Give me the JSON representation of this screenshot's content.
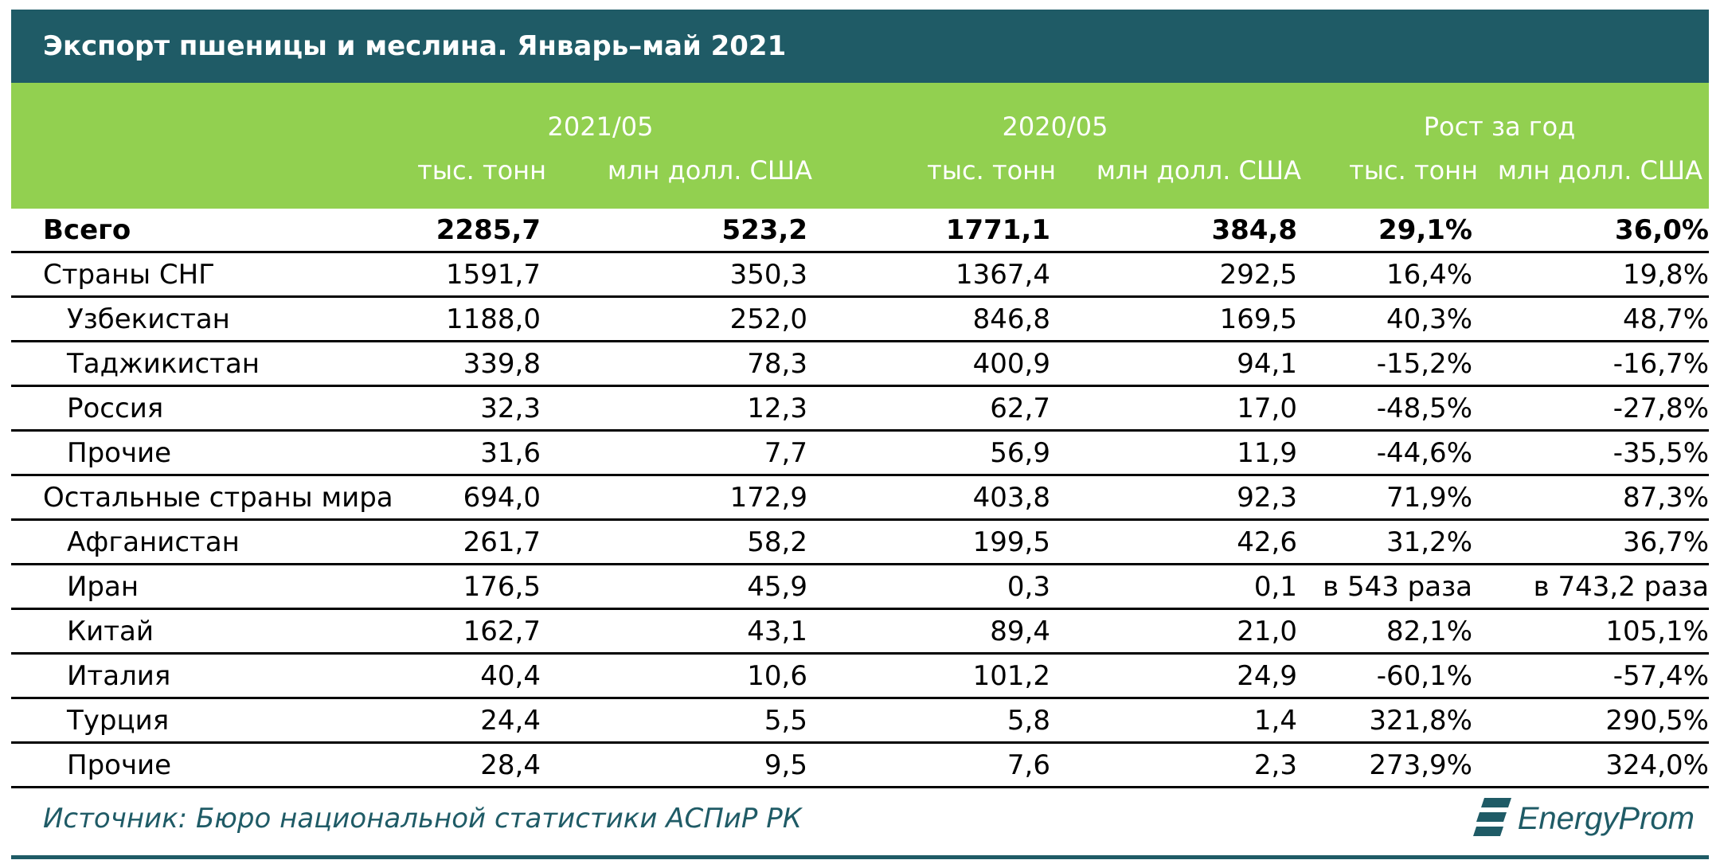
{
  "title": "Экспорт пшеницы и меслина. Январь–май 2021",
  "groups": [
    "2021/05",
    "2020/05",
    "Рост за год"
  ],
  "subheaders": [
    "тыс. тонн",
    "млн долл. США",
    "тыс. тонн",
    "млн долл. США",
    "тыс. тонн",
    "млн долл. США"
  ],
  "rows": [
    {
      "label": "Всего",
      "v": [
        "2285,7",
        "523,2",
        "1771,1",
        "384,8",
        "29,1%",
        "36,0%"
      ]
    },
    {
      "label": "Страны СНГ",
      "v": [
        "1591,7",
        "350,3",
        "1367,4",
        "292,5",
        "16,4%",
        "19,8%"
      ]
    },
    {
      "label": "Узбекистан",
      "v": [
        "1188,0",
        "252,0",
        "846,8",
        "169,5",
        "40,3%",
        "48,7%"
      ]
    },
    {
      "label": "Таджикистан",
      "v": [
        "339,8",
        "78,3",
        "400,9",
        "94,1",
        "-15,2%",
        "-16,7%"
      ]
    },
    {
      "label": "Россия",
      "v": [
        "32,3",
        "12,3",
        "62,7",
        "17,0",
        "-48,5%",
        "-27,8%"
      ]
    },
    {
      "label": "Прочие",
      "v": [
        "31,6",
        "7,7",
        "56,9",
        "11,9",
        "-44,6%",
        "-35,5%"
      ]
    },
    {
      "label": "Остальные страны мира",
      "v": [
        "694,0",
        "172,9",
        "403,8",
        "92,3",
        "71,9%",
        "87,3%"
      ]
    },
    {
      "label": "Афганистан",
      "v": [
        "261,7",
        "58,2",
        "199,5",
        "42,6",
        "31,2%",
        "36,7%"
      ]
    },
    {
      "label": "Иран",
      "v": [
        "176,5",
        "45,9",
        "0,3",
        "0,1",
        "в 543 раза",
        "в 743,2 раза"
      ]
    },
    {
      "label": "Китай",
      "v": [
        "162,7",
        "43,1",
        "89,4",
        "21,0",
        "82,1%",
        "105,1%"
      ]
    },
    {
      "label": "Италия",
      "v": [
        "40,4",
        "10,6",
        "101,2",
        "24,9",
        "-60,1%",
        "-57,4%"
      ]
    },
    {
      "label": "Турция",
      "v": [
        "24,4",
        "5,5",
        "5,8",
        "1,4",
        "321,8%",
        "290,5%"
      ]
    },
    {
      "label": "Прочие",
      "v": [
        "28,4",
        "9,5",
        "7,6",
        "2,3",
        "273,9%",
        "324,0%"
      ]
    }
  ],
  "source": "Источник: Бюро национальной статистики АСПиР РК",
  "logo_text": "EnergyProm"
}
